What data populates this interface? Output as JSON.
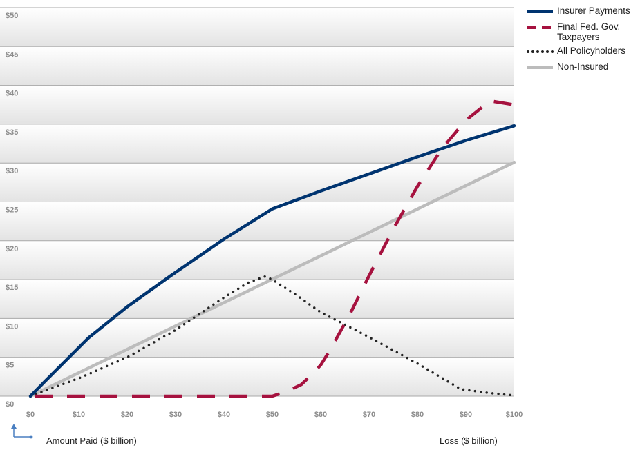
{
  "colors": {
    "insurer": "#003470",
    "federal": "#a6123f",
    "policyholders": "#222222",
    "noninsured": "#bcbcbc",
    "gridline": "#a8a8a8",
    "plot_bg_top": "#ffffff",
    "plot_bg_bottom": "#e3e3e3",
    "axis_icon": "#4a7fc1"
  },
  "icons": {
    "corner": "axis-corner-icon"
  },
  "axis_titles": {
    "y": "Amount Paid ($ billion)",
    "x": "Loss ($ billion)"
  },
  "chart_data": {
    "type": "line",
    "xlabel": "Loss ($ billion)",
    "ylabel": "Amount Paid ($ billion)",
    "xlim": [
      0,
      100
    ],
    "ylim": [
      0,
      50
    ],
    "x_ticks": [
      "$0",
      "$10",
      "$20",
      "$30",
      "$40",
      "$50",
      "$60",
      "$70",
      "$80",
      "$90",
      "$100"
    ],
    "y_ticks": [
      "$0",
      "$5",
      "$10",
      "$15",
      "$20",
      "$25",
      "$30",
      "$35",
      "$40",
      "$45",
      "$50"
    ],
    "grid": true,
    "legend_position": "top-right",
    "series": [
      {
        "name": "Insurer Payments",
        "style": "solid",
        "points": [
          [
            0,
            0
          ],
          [
            3,
            1.9
          ],
          [
            12,
            7.5
          ],
          [
            20,
            11.5
          ],
          [
            29,
            15.5
          ],
          [
            40,
            20.2
          ],
          [
            50,
            24.1
          ],
          [
            60,
            26.4
          ],
          [
            70,
            28.6
          ],
          [
            80,
            30.8
          ],
          [
            90,
            32.9
          ],
          [
            100,
            34.8
          ]
        ]
      },
      {
        "name": "Final Fed. Gov. Taxpayers",
        "style": "dashed",
        "points": [
          [
            0,
            0
          ],
          [
            50,
            0
          ],
          [
            51,
            0.2
          ],
          [
            53,
            0.6
          ],
          [
            56,
            1.5
          ],
          [
            58,
            2.7
          ],
          [
            60,
            4.0
          ],
          [
            62,
            6.0
          ],
          [
            66,
            10.5
          ],
          [
            70,
            15.5
          ],
          [
            75,
            21.5
          ],
          [
            80,
            27.0
          ],
          [
            85,
            31.8
          ],
          [
            90,
            35.5
          ],
          [
            95,
            38.0
          ],
          [
            100,
            37.5
          ]
        ]
      },
      {
        "name": "All Policyholders",
        "style": "dotted",
        "points": [
          [
            0,
            0
          ],
          [
            10,
            2.3
          ],
          [
            20,
            5.0
          ],
          [
            30,
            8.5
          ],
          [
            40,
            12.7
          ],
          [
            45,
            14.6
          ],
          [
            48.5,
            15.4
          ],
          [
            50,
            15.0
          ],
          [
            55,
            13.0
          ],
          [
            60,
            10.8
          ],
          [
            70,
            7.6
          ],
          [
            80,
            4.2
          ],
          [
            86,
            2.0
          ],
          [
            89,
            0.9
          ],
          [
            95,
            0.4
          ],
          [
            100,
            0.1
          ]
        ]
      },
      {
        "name": "Non-Insured",
        "style": "solid",
        "points": [
          [
            0,
            0
          ],
          [
            100,
            30.1
          ]
        ]
      }
    ]
  },
  "legend": [
    {
      "label": "Insurer Payments"
    },
    {
      "label": "Final Fed. Gov. Taxpayers"
    },
    {
      "label": "All Policyholders"
    },
    {
      "label": "Non-Insured"
    }
  ]
}
